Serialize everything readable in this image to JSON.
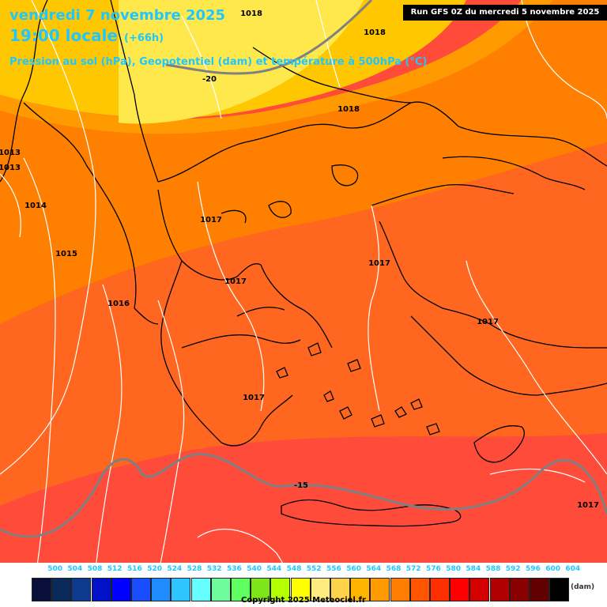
{
  "header": {
    "date": "vendredi 7 novembre 2025",
    "time": "19:00 locale",
    "lead": "(+66h)",
    "subtitle": "Pression au sol (hPa), Geopotentiel (dam) et température à 500hPa (°C)",
    "run": "Run GFS 0Z du mercredi 5 novembre 2025"
  },
  "map": {
    "pressure_labels": [
      "1018",
      "1018",
      "1018",
      "1013",
      "1013",
      "1014",
      "1015",
      "1016",
      "1017",
      "1017",
      "1017",
      "1017",
      "1017",
      "1017"
    ],
    "temperature_labels": [
      "-20",
      "-15"
    ],
    "colors": {
      "band_528": "#ffe84c",
      "band_552": "#ffc700",
      "band_560": "#ff9a00",
      "band_564": "#ff8000",
      "band_568": "#ff6620",
      "band_572": "#ff4b3a",
      "coastline": "#000000",
      "isobar": "#ffffff",
      "isotherm": "#808080"
    }
  },
  "legend": {
    "labels": [
      "500",
      "504",
      "508",
      "512",
      "516",
      "520",
      "524",
      "528",
      "532",
      "536",
      "540",
      "544",
      "548",
      "552",
      "556",
      "560",
      "564",
      "568",
      "572",
      "576",
      "580",
      "584",
      "588",
      "592",
      "596",
      "600",
      "604"
    ],
    "colors": [
      "#0a0f3a",
      "#0b2a5c",
      "#0d3a8c",
      "#0011c8",
      "#0000ff",
      "#1a4dff",
      "#1e8cff",
      "#2ec5ff",
      "#66ffff",
      "#6ffc9c",
      "#5fff5f",
      "#7ee51b",
      "#b4ff00",
      "#ffff00",
      "#ffec80",
      "#ffd24c",
      "#ffb400",
      "#ff9a00",
      "#ff7d00",
      "#ff5500",
      "#ff3000",
      "#ff0000",
      "#d40000",
      "#b00000",
      "#8a0000",
      "#600000",
      "#000000"
    ],
    "unit": "(dam)"
  },
  "footer": {
    "copyright": "Copyright 2025 Meteociel.fr"
  }
}
